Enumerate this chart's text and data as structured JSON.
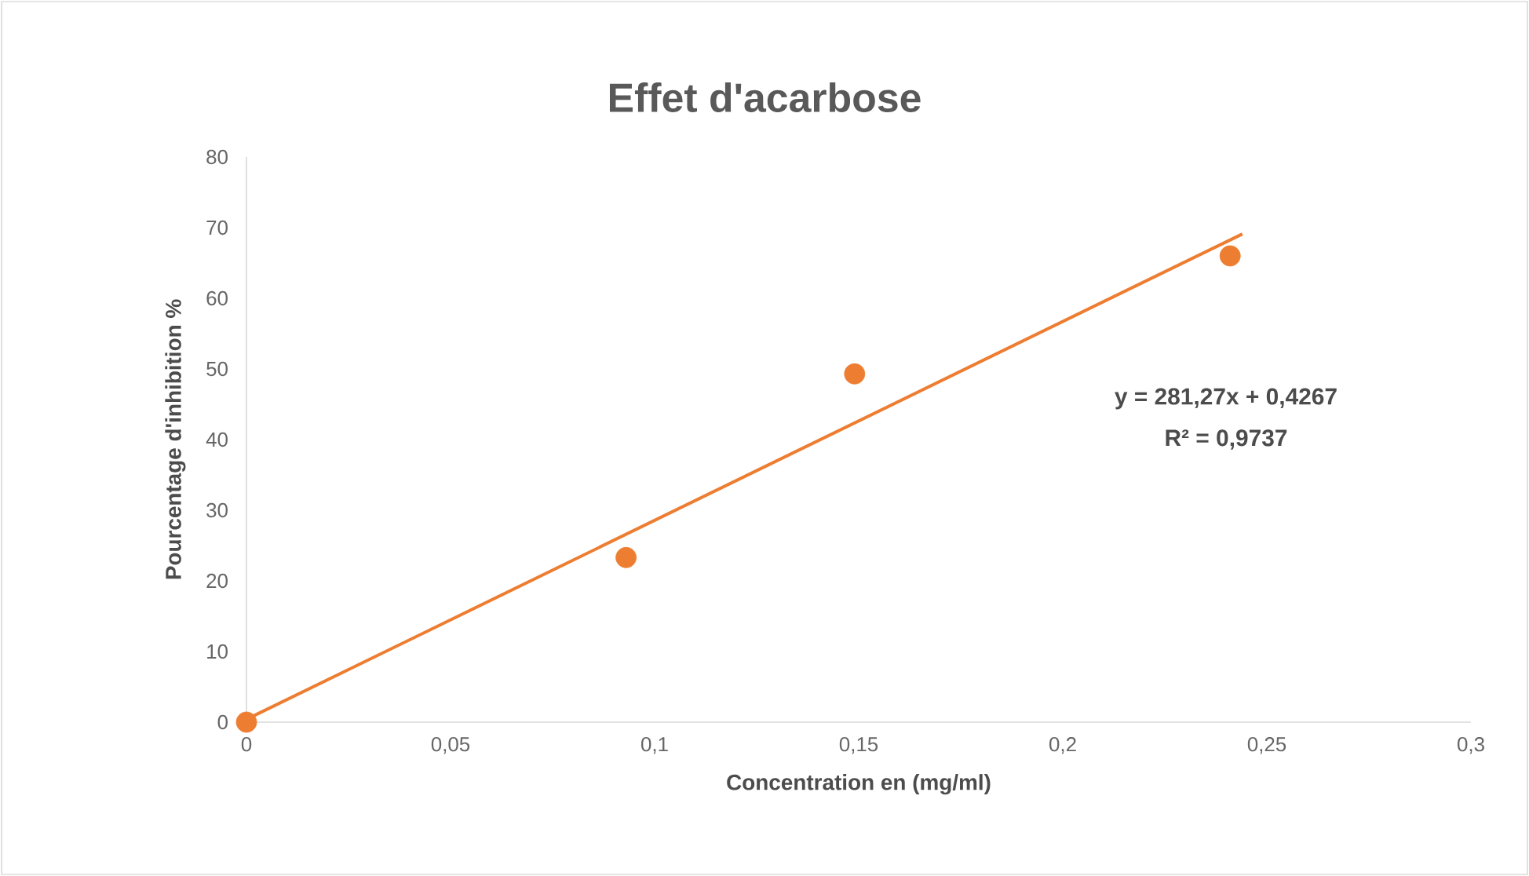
{
  "chart_data": {
    "type": "scatter",
    "title": "Effet d'acarbose",
    "xlabel": "Concentration en (mg/ml)",
    "ylabel": "Pourcentage d'inhibition %",
    "xlim": [
      0,
      0.3
    ],
    "ylim": [
      0,
      80
    ],
    "xticks": [
      {
        "value": 0,
        "label": "0"
      },
      {
        "value": 0.05,
        "label": "0,05"
      },
      {
        "value": 0.1,
        "label": "0,1"
      },
      {
        "value": 0.15,
        "label": "0,15"
      },
      {
        "value": 0.2,
        "label": "0,2"
      },
      {
        "value": 0.25,
        "label": "0,25"
      },
      {
        "value": 0.3,
        "label": "0,3"
      }
    ],
    "yticks": [
      0,
      10,
      20,
      30,
      40,
      50,
      60,
      70,
      80
    ],
    "series": [
      {
        "color": "#ed7d31",
        "marker": "circle",
        "x": [
          0,
          0.093,
          0.149,
          0.241
        ],
        "values": [
          0,
          23.3,
          49.3,
          66
        ]
      },
      {
        "type": "line",
        "color": "#ed7d31",
        "marker": "none",
        "line_style": "solid",
        "x": [
          0,
          0.244
        ],
        "values": [
          0.4,
          69.1
        ]
      }
    ],
    "annotations": [
      "y = 281,27x + 0,4267",
      "R² = 0,9737"
    ],
    "grid": false
  }
}
